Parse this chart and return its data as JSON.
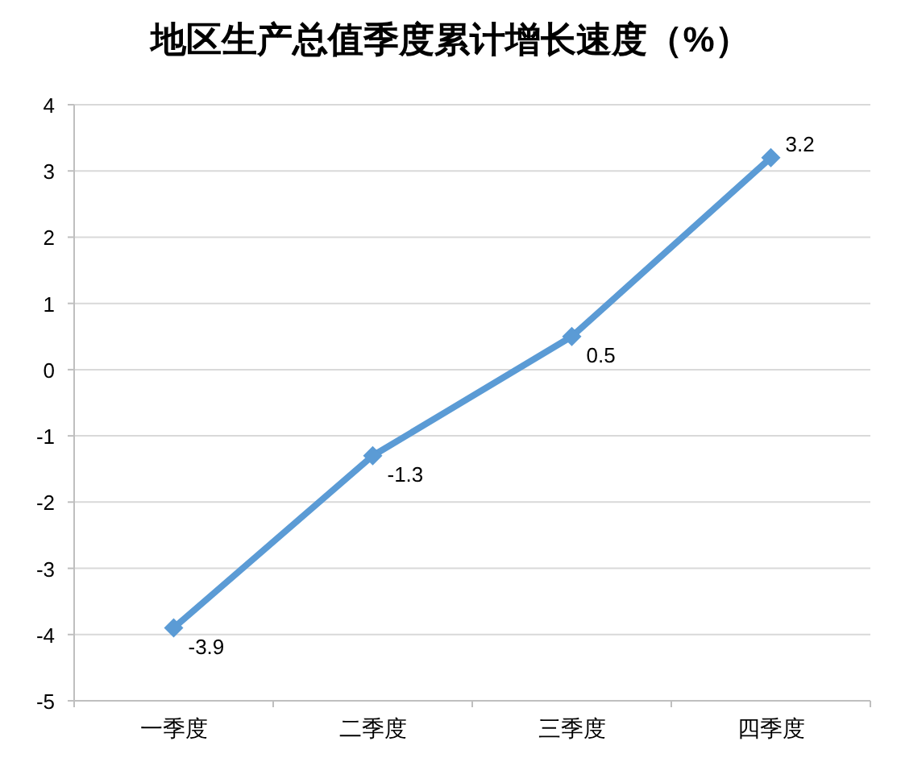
{
  "chart_data": {
    "type": "line",
    "title": "地区生产总值季度累计增长速度（%）",
    "categories": [
      "一季度",
      "二季度",
      "三季度",
      "四季度"
    ],
    "series": [
      {
        "color": "#5b9bd5",
        "values": [
          -3.9,
          -1.3,
          0.5,
          3.2
        ]
      }
    ],
    "ylim": [
      -5,
      4
    ],
    "yticks": [
      -5,
      -4,
      -3,
      -2,
      -1,
      0,
      1,
      2,
      3,
      4
    ],
    "grid": "y",
    "marker": "diamond",
    "line_style": "solid",
    "data_labels": true
  }
}
